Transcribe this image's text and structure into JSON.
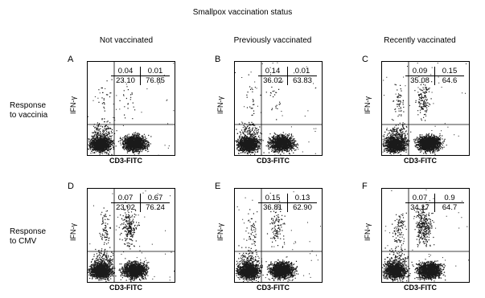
{
  "title": "Smallpox vaccination status",
  "columns": [
    "Not vaccinated",
    "Previously vaccinated",
    "Recently vaccinated"
  ],
  "rows": [
    {
      "label_line1": "Response",
      "label_line2": "to vaccinia"
    },
    {
      "label_line1": "Response",
      "label_line2": "to CMV"
    }
  ],
  "x_axis_label": "CD3-FITC",
  "y_axis_label": "IFN-γ",
  "panels": [
    {
      "letter": "A",
      "ul": "0.04",
      "ur": "0.01",
      "ll": "23.10",
      "lr": "76.85"
    },
    {
      "letter": "B",
      "ul": "0.14",
      "ur": "0.01",
      "ll": "36.02",
      "lr": "63.83"
    },
    {
      "letter": "C",
      "ul": "0.09",
      "ur": "0.15",
      "ll": "35.08",
      "lr": "64.6"
    },
    {
      "letter": "D",
      "ul": "0.07",
      "ur": "0.67",
      "ll": "23.02",
      "lr": "76.24"
    },
    {
      "letter": "E",
      "ul": "0.15",
      "ur": "0.13",
      "ll": "36.81",
      "lr": "62.90"
    },
    {
      "letter": "F",
      "ul": "0.07",
      "ur": "0.9",
      "ll": "34.17",
      "lr": "64.7"
    }
  ]
}
